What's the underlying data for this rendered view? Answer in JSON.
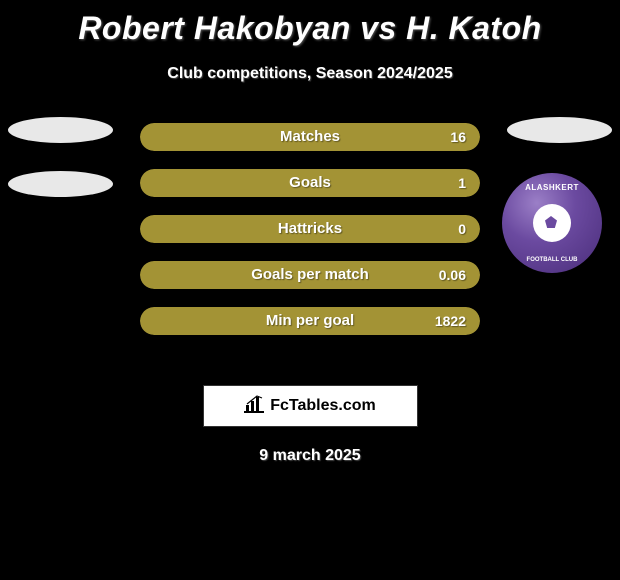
{
  "title": "Robert Hakobyan vs H. Katoh",
  "subtitle": "Club competitions, Season 2024/2025",
  "date": "9 march 2025",
  "bar_style": {
    "fill_color": "#a39335",
    "bg_color": "#a39335",
    "height": 28,
    "radius": 14,
    "label_fontsize": 15,
    "value_fontsize": 14,
    "text_color": "#ffffff"
  },
  "bars": [
    {
      "label": "Matches",
      "value": "16",
      "fill_pct": 100
    },
    {
      "label": "Goals",
      "value": "1",
      "fill_pct": 100
    },
    {
      "label": "Hattricks",
      "value": "0",
      "fill_pct": 100
    },
    {
      "label": "Goals per match",
      "value": "0.06",
      "fill_pct": 100
    },
    {
      "label": "Min per goal",
      "value": "1822",
      "fill_pct": 100
    }
  ],
  "left_ellipse": {
    "color": "#e8e8e8",
    "count": 2
  },
  "right_ellipse": {
    "color": "#e8e8e8"
  },
  "right_logo": {
    "top_text": "ALASHKERT",
    "bottom_text": "FOOTBALL CLUB",
    "bg_gradient": [
      "#9b7fc7",
      "#6b4aa0",
      "#4a2d7a"
    ],
    "accent": "#ffffff"
  },
  "footer": {
    "label": "FcTables.com",
    "icon_color": "#000000",
    "bg": "#ffffff"
  },
  "page_bg": "#000000"
}
